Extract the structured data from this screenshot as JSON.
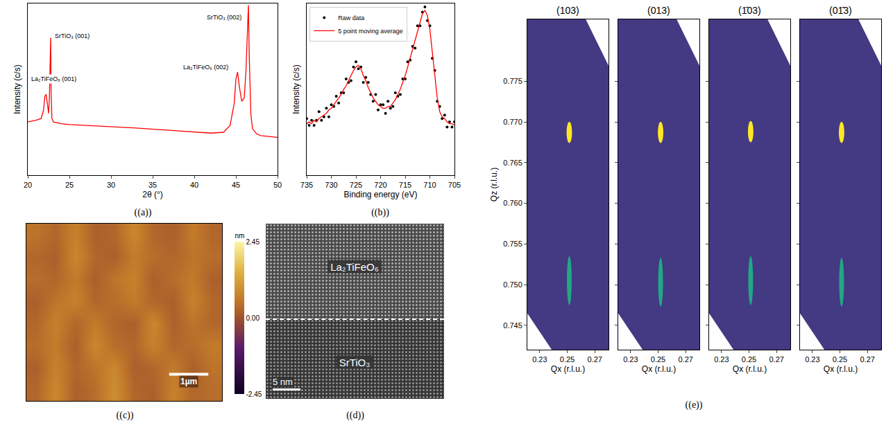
{
  "chart_data": [
    {
      "type": "line",
      "caption": "((a))",
      "xlabel": "2θ (°)",
      "ylabel": "Intensity (c/s)",
      "x": [
        20,
        21,
        21.6,
        21.9,
        22.05,
        22.2,
        22.35,
        22.5,
        22.6,
        22.7,
        22.75,
        22.8,
        22.9,
        23.1,
        23.5,
        24,
        25,
        27,
        30,
        33,
        36,
        39,
        42,
        43.5,
        44.3,
        44.8,
        45.0,
        45.2,
        45.4,
        45.7,
        46.0,
        46.2,
        46.35,
        46.5,
        46.6,
        46.8,
        47.0,
        47.5,
        48,
        49,
        50
      ],
      "values": [
        31,
        32,
        33,
        38,
        46,
        47,
        42,
        36,
        45,
        70,
        80,
        50,
        33,
        31,
        30.5,
        30,
        29.5,
        29,
        28.5,
        27.5,
        26.5,
        25.5,
        24.5,
        25,
        29,
        42,
        56,
        60,
        52,
        43,
        45,
        60,
        80,
        99,
        70,
        35,
        27,
        24,
        23,
        22.5,
        22
      ],
      "color": "#ff0000",
      "xlim": [
        20,
        50
      ],
      "xticks": [
        20,
        25,
        30,
        35,
        40,
        45,
        50
      ],
      "ylim": [
        0,
        100
      ],
      "tick_labels": "x",
      "annotations": [
        {
          "text": "La₂TiFeO₆ (001)",
          "x": 23.1,
          "y": 56
        },
        {
          "text": "SrTiO₃ (001)",
          "x": 25.3,
          "y": 81
        },
        {
          "text": "La₂TiFeO₆ (002)",
          "x": 41.4,
          "y": 63
        },
        {
          "text": "SrTiO₃ (002)",
          "x": 43.6,
          "y": 92
        }
      ]
    },
    {
      "type": "line",
      "caption": "((b))",
      "xlabel": "Binding energy (eV)",
      "ylabel": "Intensity (c/s)",
      "x": [
        735,
        734.5,
        734,
        733.5,
        733,
        732.5,
        732,
        731.5,
        731,
        730.5,
        730,
        729.5,
        729,
        728.5,
        728,
        727.5,
        727,
        726.5,
        726,
        725.5,
        725,
        724.5,
        724,
        723.5,
        723,
        722.5,
        722,
        721.5,
        721,
        720.5,
        720,
        719.5,
        719,
        718.5,
        718,
        717.5,
        717,
        716.5,
        716,
        715.5,
        715,
        714.5,
        714,
        713.5,
        713,
        712.5,
        712,
        711.5,
        711,
        710.5,
        710,
        709.5,
        709,
        708.5,
        708,
        707.5,
        707,
        706.5,
        706,
        705.5,
        705
      ],
      "series": [
        {
          "name": "Raw data",
          "type": "scatter",
          "marker": "circle",
          "color": "#000000",
          "values": [
            33,
            29,
            32,
            29,
            32,
            37,
            32,
            34,
            39,
            34,
            41,
            40,
            46,
            42,
            48,
            48,
            56,
            54,
            55,
            63,
            66,
            62,
            63,
            54,
            57,
            54,
            47,
            43,
            47,
            38,
            41,
            41,
            36,
            43,
            39,
            40,
            48,
            46,
            47,
            56,
            56,
            66,
            67,
            75,
            74,
            87,
            87,
            95,
            98,
            90,
            87,
            68,
            61,
            43,
            40,
            33,
            35,
            28,
            31,
            28,
            31
          ]
        },
        {
          "name": "5 point moving average",
          "type": "line",
          "color": "#ff0000",
          "values": [
            30,
            31,
            30,
            32,
            31,
            33,
            34,
            35,
            36,
            38,
            39,
            41,
            43,
            45,
            47,
            50,
            52,
            55,
            58,
            61,
            63,
            64,
            62,
            58,
            55,
            51,
            48,
            45,
            43,
            41,
            40,
            39,
            39,
            40,
            40,
            42,
            44,
            47,
            50,
            54,
            58,
            63,
            68,
            73,
            78,
            84,
            89,
            94,
            96,
            93,
            85,
            72,
            58,
            45,
            37,
            34,
            33,
            31,
            30,
            30,
            29
          ]
        }
      ],
      "xlim": [
        735,
        705
      ],
      "xticks": [
        735,
        730,
        725,
        720,
        715,
        710,
        705
      ],
      "ylim": [
        0,
        100
      ],
      "tick_labels": "x",
      "legend": "upper left"
    },
    {
      "type": "heatmap",
      "caption": "((c))",
      "x": [
        0.25,
        0.75,
        1.25,
        1.75,
        2.25,
        2.75,
        3.25,
        3.75,
        4.25,
        4.75
      ],
      "y": [
        0.3125,
        0.9375,
        1.5625,
        2.1875,
        2.8125,
        3.4375,
        4.0625,
        4.6875
      ],
      "z": [
        [
          0.3,
          0.8,
          0.2,
          0.4,
          0.9,
          0.3,
          0.2,
          0.7,
          0.3,
          0.4
        ],
        [
          0.2,
          0.7,
          0.3,
          0.5,
          0.8,
          0.2,
          0.3,
          0.6,
          0.2,
          0.5
        ],
        [
          0.4,
          0.6,
          0.2,
          0.8,
          0.4,
          0.3,
          0.7,
          0.3,
          0.4,
          0.6
        ],
        [
          0.3,
          0.7,
          0.3,
          0.6,
          0.3,
          0.2,
          0.8,
          0.2,
          0.5,
          0.3
        ],
        [
          0.2,
          0.5,
          0.7,
          0.3,
          0.4,
          0.6,
          0.3,
          0.2,
          0.7,
          0.3
        ],
        [
          0.4,
          0.3,
          0.6,
          0.2,
          0.5,
          0.7,
          0.2,
          0.4,
          0.6,
          0.2
        ],
        [
          0.3,
          0.2,
          0.8,
          0.3,
          0.2,
          0.6,
          0.4,
          0.3,
          0.5,
          0.4
        ],
        [
          0.5,
          0.3,
          0.7,
          0.2,
          0.3,
          0.8,
          0.3,
          0.2,
          0.6,
          0.3
        ]
      ],
      "xlim": [
        0,
        5
      ],
      "ylim": [
        0,
        5
      ],
      "tick_labels": false,
      "colorbar": {
        "title": "nm",
        "range": [
          -2.45,
          2.45
        ],
        "ticks": [
          -2.45,
          {
            "value": 0,
            "label": "0.00"
          },
          2.45
        ]
      },
      "scale_bar": {
        "length": 1,
        "label": "1µm"
      }
    },
    {
      "type": "peaks",
      "caption": "((e))",
      "xlabel": "Qx (r.l.u.)",
      "ylabel": "Qz (r.l.u.)",
      "xlim": [
        0.221,
        0.28
      ],
      "ylim": [
        0.742,
        0.7826
      ],
      "xticks": [
        0.23,
        0.25,
        0.27
      ],
      "yticks": [
        0.745,
        {
          "value": 0.75,
          "label": "0.750"
        },
        0.755,
        {
          "value": 0.76,
          "label": "0.760"
        },
        0.765,
        {
          "value": 0.77,
          "label": "0.770"
        },
        0.775
      ],
      "panels": [
        {
          "title": "(103)",
          "peaks": [
            {
              "qx": 0.2515,
              "qz": 0.7687,
              "dqx": 0.004,
              "dqz": 0.0026,
              "color": "#fde725"
            },
            {
              "qx": 0.2515,
              "qz": 0.7505,
              "dqx": 0.0035,
              "dqz": 0.006,
              "color": "#22a884"
            }
          ]
        },
        {
          "title": "(013)",
          "peaks": [
            {
              "qx": 0.2518,
              "qz": 0.7687,
              "dqx": 0.004,
              "dqz": 0.0026,
              "color": "#fde725"
            },
            {
              "qx": 0.2518,
              "qz": 0.7503,
              "dqx": 0.0035,
              "dqz": 0.006,
              "color": "#22a884"
            }
          ]
        },
        {
          "title": "(1̄03)",
          "peaks": [
            {
              "qx": 0.2512,
              "qz": 0.7688,
              "dqx": 0.004,
              "dqz": 0.0026,
              "color": "#fde725"
            },
            {
              "qx": 0.2512,
              "qz": 0.7505,
              "dqx": 0.0035,
              "dqz": 0.006,
              "color": "#22a884"
            }
          ]
        },
        {
          "title": "(01̄3)",
          "peaks": [
            {
              "qx": 0.2512,
              "qz": 0.7687,
              "dqx": 0.004,
              "dqz": 0.0026,
              "color": "#fde725"
            },
            {
              "qx": 0.2512,
              "qz": 0.7503,
              "dqx": 0.0035,
              "dqz": 0.006,
              "color": "#22a884"
            }
          ]
        }
      ]
    }
  ],
  "image_panel": {
    "caption": "((d))",
    "upper_label": "La₂TiFeO₆",
    "lower_label": "SrTiO₃",
    "scale_bar": "5 nm"
  }
}
